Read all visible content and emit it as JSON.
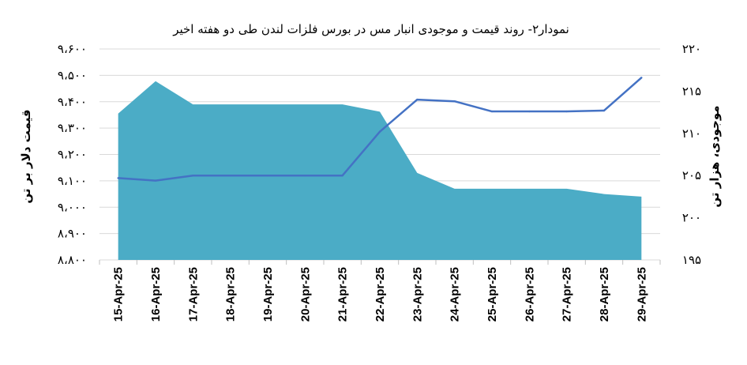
{
  "chart_data": {
    "type": "area+line",
    "title": "نمودار۲- روند قیمت و موجودی انبار مس در بورس فلزات لندن طی دو هفته اخیر",
    "ylabel_left": "قیمت دلار بر تن",
    "ylabel_right": "موجودی، هزار تن",
    "categories": [
      "15-Apr-25",
      "16-Apr-25",
      "17-Apr-25",
      "18-Apr-25",
      "19-Apr-25",
      "20-Apr-25",
      "21-Apr-25",
      "22-Apr-25",
      "23-Apr-25",
      "24-Apr-25",
      "25-Apr-25",
      "26-Apr-25",
      "27-Apr-25",
      "28-Apr-25",
      "29-Apr-25"
    ],
    "left_axis": {
      "ylim": [
        8800,
        9600
      ],
      "ticks": [
        "۸،۸۰۰",
        "۸،۹۰۰",
        "۹،۰۰۰",
        "۹،۱۰۰",
        "۹،۲۰۰",
        "۹،۳۰۰",
        "۹،۴۰۰",
        "۹،۵۰۰",
        "۹،۶۰۰"
      ]
    },
    "right_axis": {
      "ylim": [
        195,
        220
      ],
      "ticks": [
        "۱۹۵",
        "۲۰۰",
        "۲۰۵",
        "۲۱۰",
        "۲۱۵",
        "۲۲۰"
      ]
    },
    "series": [
      {
        "type": "area",
        "axis": "left",
        "color": "#4BACC6",
        "values": [
          9355,
          9478,
          9390,
          9390,
          9390,
          9390,
          9390,
          9362,
          9130,
          9070,
          9070,
          9070,
          9070,
          9050,
          9040
        ]
      },
      {
        "type": "line",
        "axis": "right",
        "color": "#4472C4",
        "values": [
          204.7,
          204.4,
          205.0,
          205.0,
          205.0,
          205.0,
          205.0,
          210.2,
          214.0,
          213.8,
          212.6,
          212.6,
          212.6,
          212.7,
          216.6
        ]
      }
    ],
    "grid": true
  }
}
